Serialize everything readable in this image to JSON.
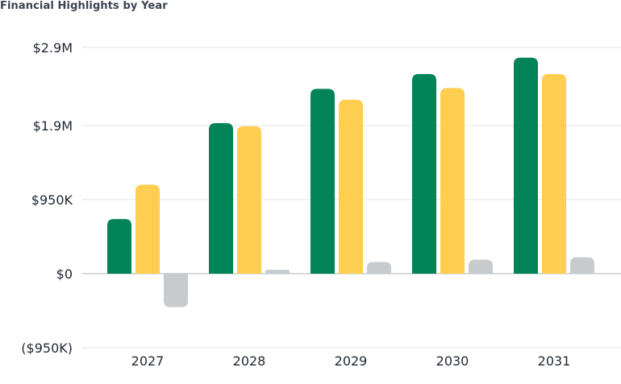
{
  "chart_data": {
    "type": "bar",
    "title": "Financial Highlights by Year",
    "categories": [
      "2027",
      "2028",
      "2029",
      "2030",
      "2031"
    ],
    "series": [
      {
        "values": [
          700000,
          1930000,
          2370000,
          2560000,
          2770000
        ],
        "color": "#008457"
      },
      {
        "values": [
          1140000,
          1890000,
          2230000,
          2380000,
          2560000
        ],
        "color": "#ffcd4f"
      },
      {
        "values": [
          -430000,
          50000,
          150000,
          180000,
          210000
        ],
        "color": "#c8cbce"
      }
    ],
    "y_ticks": [
      {
        "value": 2900000,
        "label": "$2.9M"
      },
      {
        "value": 1900000,
        "label": "$1.9M"
      },
      {
        "value": 950000,
        "label": "$950K"
      },
      {
        "value": 0,
        "label": "$0"
      },
      {
        "value": -950000,
        "label": "($950K)"
      }
    ],
    "ylim": [
      -950000,
      2900000
    ],
    "grid": true,
    "legend": "none"
  }
}
